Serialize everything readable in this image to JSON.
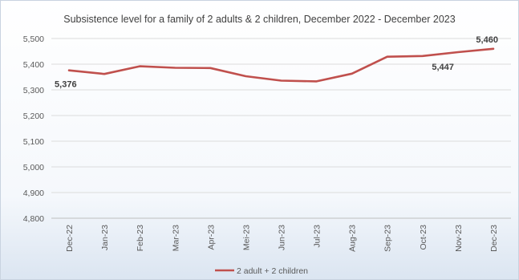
{
  "chart_data": {
    "type": "line",
    "title": "Subsistence level for a family of 2 adults & 2 children, December 2022 - December 2023",
    "xlabel": "",
    "ylabel": "",
    "categories": [
      "Dec-22",
      "Jan-23",
      "Feb-23",
      "Mar-23",
      "Apr-23",
      "Mei-23",
      "Jun-23",
      "Jul-23",
      "Aug-23",
      "Sep-23",
      "Oct-23",
      "Nov-23",
      "Dec-23"
    ],
    "series": [
      {
        "name": "2 adult + 2 children",
        "color": "#c0504d",
        "values": [
          5376,
          5362,
          5392,
          5386,
          5385,
          5353,
          5336,
          5333,
          5363,
          5429,
          5432,
          5447,
          5460
        ]
      }
    ],
    "y_ticks": [
      "5,500",
      "5,400",
      "5,300",
      "5,200",
      "5,100",
      "5,000",
      "4,900",
      "4,800"
    ],
    "ylim": [
      4800,
      5500
    ],
    "grid": true,
    "legend": "bottom",
    "data_labels": [
      {
        "index": 0,
        "text": "5,376"
      },
      {
        "index": 11,
        "text": "5,447"
      },
      {
        "index": 12,
        "text": "5,460"
      }
    ]
  }
}
